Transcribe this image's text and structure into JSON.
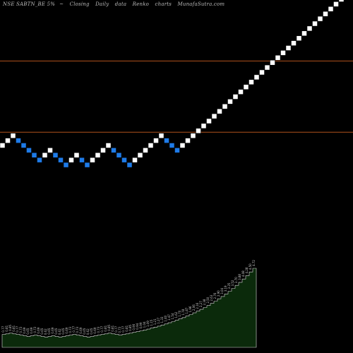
{
  "header": {
    "ticker": "NSE SABTN_BE 5%",
    "tilde": "~",
    "series_type": "Closing",
    "frequency": "Daily",
    "data_word": "data",
    "chart_kind": "Renko",
    "charts_word": "charts",
    "site": "MunafaSutra.com"
  },
  "colors": {
    "background": "#000000",
    "up_brick": "#ffffff",
    "down_brick": "#1e7be8",
    "ref_line": "#b0521c",
    "volume_area": "#0b2a0b",
    "label": "#cccccc"
  },
  "chart_data": {
    "type": "renko",
    "brick_percent": 5,
    "reference_lines": [
      1.8,
      0.88
    ],
    "bricks": [
      {
        "value": 0.77,
        "dir": "up"
      },
      {
        "value": 0.81,
        "dir": "up"
      },
      {
        "value": 0.85,
        "dir": "up"
      },
      {
        "value": 0.81,
        "dir": "down"
      },
      {
        "value": 0.77,
        "dir": "down"
      },
      {
        "value": 0.73,
        "dir": "down"
      },
      {
        "value": 0.69,
        "dir": "down"
      },
      {
        "value": 0.65,
        "dir": "down"
      },
      {
        "value": 0.69,
        "dir": "up"
      },
      {
        "value": 0.73,
        "dir": "up"
      },
      {
        "value": 0.69,
        "dir": "down"
      },
      {
        "value": 0.65,
        "dir": "down"
      },
      {
        "value": 0.62,
        "dir": "down"
      },
      {
        "value": 0.65,
        "dir": "up"
      },
      {
        "value": 0.69,
        "dir": "up"
      },
      {
        "value": 0.65,
        "dir": "down"
      },
      {
        "value": 0.62,
        "dir": "down"
      },
      {
        "value": 0.65,
        "dir": "up"
      },
      {
        "value": 0.69,
        "dir": "up"
      },
      {
        "value": 0.73,
        "dir": "up"
      },
      {
        "value": 0.77,
        "dir": "up"
      },
      {
        "value": 0.73,
        "dir": "down"
      },
      {
        "value": 0.69,
        "dir": "down"
      },
      {
        "value": 0.65,
        "dir": "down"
      },
      {
        "value": 0.62,
        "dir": "down"
      },
      {
        "value": 0.65,
        "dir": "up"
      },
      {
        "value": 0.69,
        "dir": "up"
      },
      {
        "value": 0.73,
        "dir": "up"
      },
      {
        "value": 0.77,
        "dir": "up"
      },
      {
        "value": 0.81,
        "dir": "up"
      },
      {
        "value": 0.85,
        "dir": "up"
      },
      {
        "value": 0.81,
        "dir": "down"
      },
      {
        "value": 0.77,
        "dir": "down"
      },
      {
        "value": 0.73,
        "dir": "down"
      },
      {
        "value": 0.77,
        "dir": "up"
      },
      {
        "value": 0.81,
        "dir": "up"
      },
      {
        "value": 0.85,
        "dir": "up"
      },
      {
        "value": 0.9,
        "dir": "up"
      },
      {
        "value": 0.94,
        "dir": "up"
      },
      {
        "value": 0.99,
        "dir": "up"
      },
      {
        "value": 1.04,
        "dir": "up"
      },
      {
        "value": 1.09,
        "dir": "up"
      },
      {
        "value": 1.15,
        "dir": "up"
      },
      {
        "value": 1.21,
        "dir": "up"
      },
      {
        "value": 1.27,
        "dir": "up"
      },
      {
        "value": 1.33,
        "dir": "up"
      },
      {
        "value": 1.4,
        "dir": "up"
      },
      {
        "value": 1.47,
        "dir": "up"
      },
      {
        "value": 1.54,
        "dir": "up"
      },
      {
        "value": 1.62,
        "dir": "up"
      },
      {
        "value": 1.7,
        "dir": "up"
      },
      {
        "value": 1.78,
        "dir": "up"
      },
      {
        "value": 1.87,
        "dir": "up"
      },
      {
        "value": 1.96,
        "dir": "up"
      },
      {
        "value": 2.06,
        "dir": "up"
      },
      {
        "value": 2.16,
        "dir": "up"
      },
      {
        "value": 2.27,
        "dir": "up"
      },
      {
        "value": 2.38,
        "dir": "up"
      },
      {
        "value": 2.5,
        "dir": "up"
      },
      {
        "value": 2.63,
        "dir": "up"
      },
      {
        "value": 2.76,
        "dir": "up"
      },
      {
        "value": 2.9,
        "dir": "up"
      },
      {
        "value": 3.04,
        "dir": "up"
      },
      {
        "value": 3.19,
        "dir": "up"
      },
      {
        "value": 3.35,
        "dir": "up"
      },
      {
        "value": 3.52,
        "dir": "up"
      },
      {
        "value": 3.7,
        "dir": "up"
      },
      {
        "value": 3.88,
        "dir": "up"
      },
      {
        "value": 4.08,
        "dir": "up"
      },
      {
        "value": 4.28,
        "dir": "up"
      },
      {
        "value": 4.5,
        "dir": "up"
      },
      {
        "value": 4.72,
        "dir": "up"
      }
    ]
  }
}
